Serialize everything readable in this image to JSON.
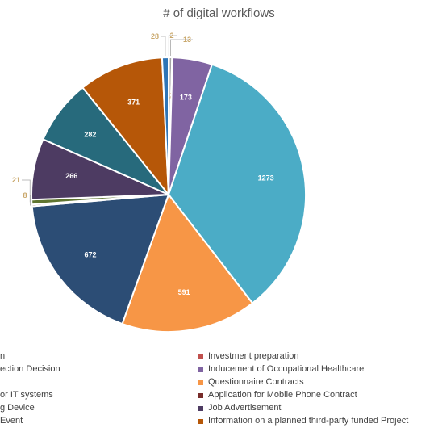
{
  "chart_data": {
    "type": "pie",
    "title": "# of digital workflows",
    "slices": [
      {
        "label": "",
        "value": 2,
        "color": "#4472C4",
        "label_color": "#c9a76a"
      },
      {
        "label": "",
        "value": 13,
        "color": "#A5A5A5",
        "label_color": "#c9a76a"
      },
      {
        "label": "Investment preparation",
        "value": 2,
        "color": "#C0504D",
        "label_color": "#c9a76a"
      },
      {
        "label": "Inducement of Occupational Healthcare",
        "value": 173,
        "color": "#8064A2",
        "label_color": "#ffffff"
      },
      {
        "label": "",
        "value": 1273,
        "color": "#4BACC6",
        "label_color": "#ffffff"
      },
      {
        "label": "Questionnaire Contracts",
        "value": 591,
        "color": "#F79646",
        "label_color": "#ffffff"
      },
      {
        "label": "",
        "value": 672,
        "color": "#2C4D75",
        "label_color": "#ffffff"
      },
      {
        "label": "Application for Mobile Phone Contract",
        "value": 8,
        "color": "#772C2A",
        "label_color": "#c9a76a"
      },
      {
        "label": "",
        "value": 21,
        "color": "#5F7530",
        "label_color": "#c9a76a"
      },
      {
        "label": "Job Advertisement",
        "value": 266,
        "color": "#4D3B62",
        "label_color": "#ffffff"
      },
      {
        "label": "",
        "value": 282,
        "color": "#276A7C",
        "label_color": "#ffffff"
      },
      {
        "label": "Information on a planned third-party funded Project",
        "value": 371,
        "color": "#B65708",
        "label_color": "#ffffff"
      },
      {
        "label": "",
        "value": 28,
        "color": "#2E75B6",
        "label_color": "#c9a76a"
      }
    ],
    "legend_position": "bottom",
    "legend": {
      "left_column": [
        {
          "text": "n",
          "color": "#4472C4"
        },
        {
          "text": "ection Decision",
          "color": "#A5A5A5"
        },
        {
          "text": "",
          "color": ""
        },
        {
          "text": "or IT systems",
          "color": "#2C4D75"
        },
        {
          "text": "g Device",
          "color": "#5F7530"
        },
        {
          "text": "Event",
          "color": "#276A7C"
        }
      ],
      "right_column": [
        {
          "text": "Investment preparation",
          "color": "#C0504D"
        },
        {
          "text": "Inducement of Occupational Healthcare",
          "color": "#8064A2"
        },
        {
          "text": "Questionnaire Contracts",
          "color": "#F79646"
        },
        {
          "text": "Application for Mobile Phone Contract",
          "color": "#772C2A"
        },
        {
          "text": "Job Advertisement",
          "color": "#4D3B62"
        },
        {
          "text": "Information on a planned third-party funded Project",
          "color": "#B65708"
        }
      ]
    }
  }
}
